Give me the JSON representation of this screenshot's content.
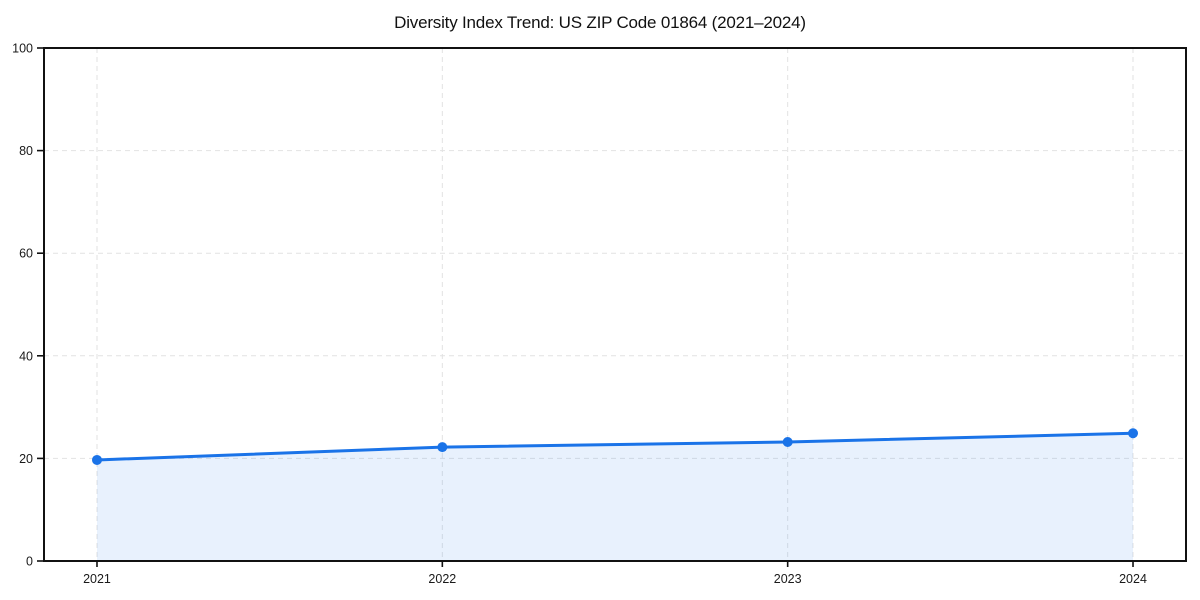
{
  "title": "Diversity Index Trend: US ZIP Code 01864 (2021–2024)",
  "chart_data": {
    "type": "line",
    "area_fill": true,
    "categories": [
      "2021",
      "2022",
      "2023",
      "2024"
    ],
    "series": [
      {
        "name": "Diversity Index",
        "values": [
          19.7,
          22.2,
          23.2,
          24.9
        ]
      }
    ],
    "title": "Diversity Index Trend: US ZIP Code 01864 (2021–2024)",
    "xlabel": "",
    "ylabel": "",
    "ylim": [
      0,
      100
    ],
    "yticks": [
      0,
      20,
      40,
      60,
      80,
      100
    ],
    "grid": true,
    "grid_style": "dashed",
    "legend": "none",
    "marker": "circle",
    "colors": {
      "line": "#1a73e8",
      "marker": "#1a73e8",
      "fill": "rgba(26,115,232,0.10)",
      "grid": "#e2e2e2",
      "axis": "#111111",
      "tick_label": "#1a1a1a",
      "background": "#ffffff"
    }
  }
}
